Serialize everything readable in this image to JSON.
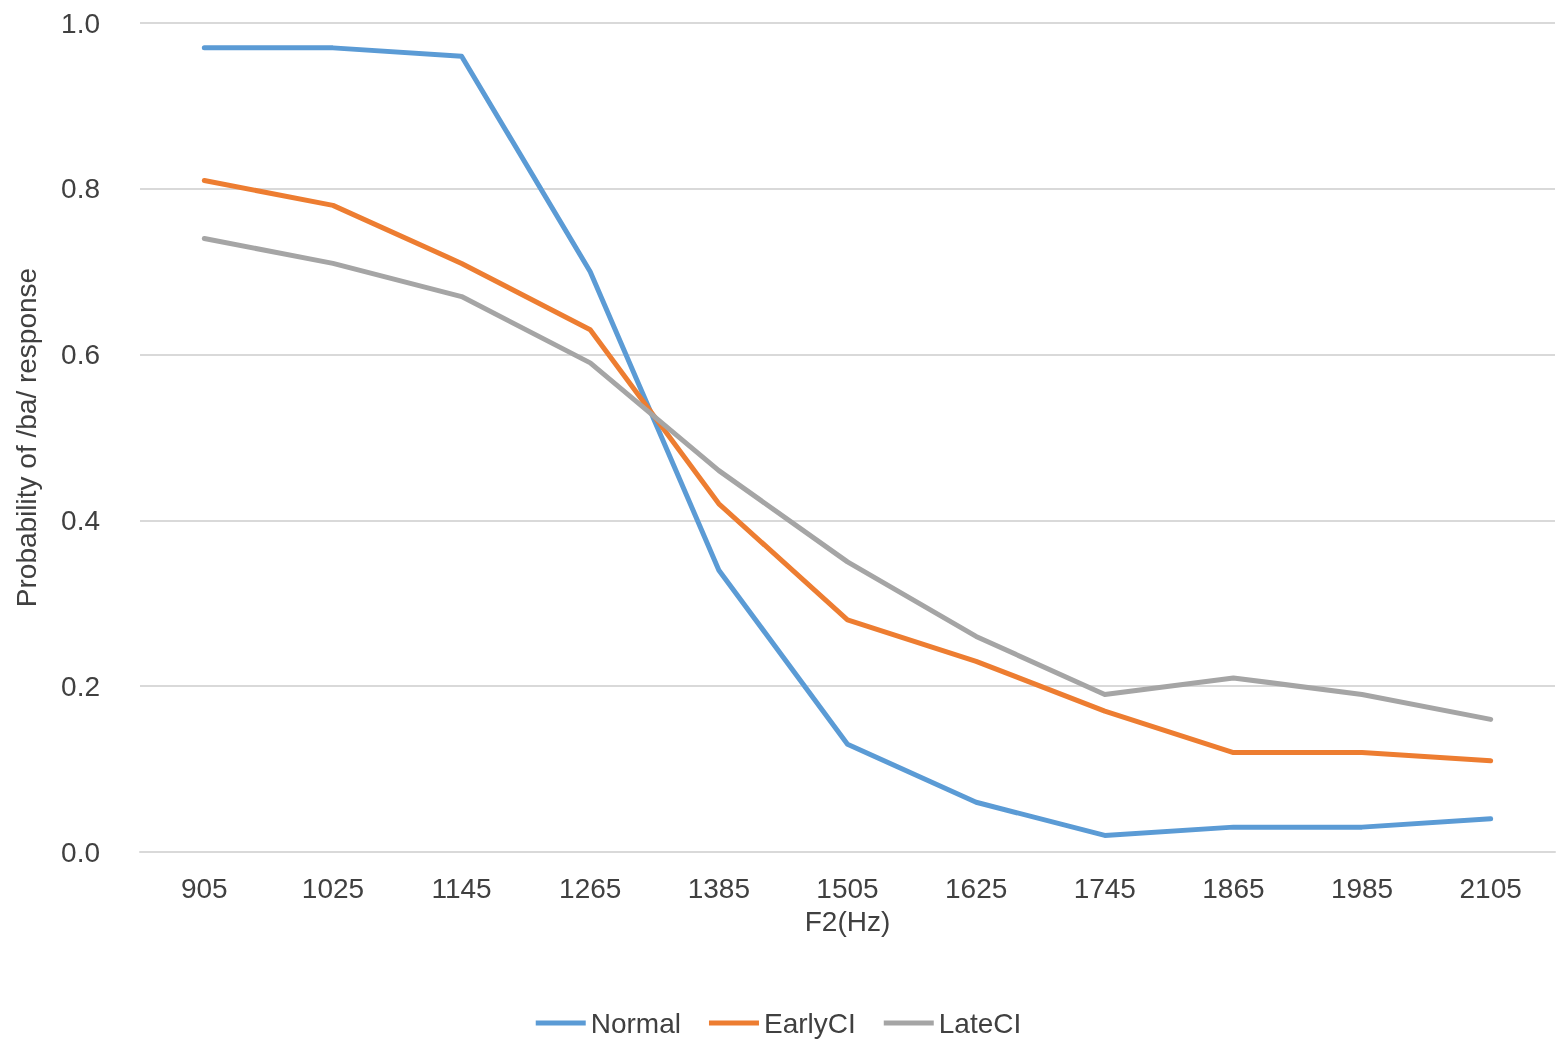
{
  "chart_data": {
    "type": "line",
    "xlabel": "F2(Hz)",
    "ylabel": "Probability of /ba/ response",
    "categories": [
      "905",
      "1025",
      "1145",
      "1265",
      "1385",
      "1505",
      "1625",
      "1745",
      "1865",
      "1985",
      "2105"
    ],
    "series": [
      {
        "name": "Normal",
        "color": "#5b9bd5",
        "values": [
          0.97,
          0.97,
          0.96,
          0.7,
          0.34,
          0.13,
          0.06,
          0.02,
          0.03,
          0.03,
          0.04
        ]
      },
      {
        "name": "EarlyCI",
        "color": "#ed7d31",
        "values": [
          0.81,
          0.78,
          0.71,
          0.63,
          0.42,
          0.28,
          0.23,
          0.17,
          0.12,
          0.12,
          0.11
        ]
      },
      {
        "name": "LateCI",
        "color": "#a5a5a5",
        "values": [
          0.74,
          0.71,
          0.67,
          0.59,
          0.46,
          0.35,
          0.26,
          0.19,
          0.21,
          0.19,
          0.16
        ]
      }
    ],
    "ylim": [
      0,
      1
    ],
    "yticks": [
      {
        "value": 0,
        "label": "0.0"
      },
      {
        "value": 0.2,
        "label": "0.2"
      },
      {
        "value": 0.4,
        "label": "0.4"
      },
      {
        "value": 0.6,
        "label": "0.6"
      },
      {
        "value": 0.8,
        "label": "0.8"
      },
      {
        "value": 1,
        "label": "1.0"
      }
    ],
    "grid": "y",
    "legend": "bottom",
    "marker": "none",
    "line_style": "solid"
  }
}
